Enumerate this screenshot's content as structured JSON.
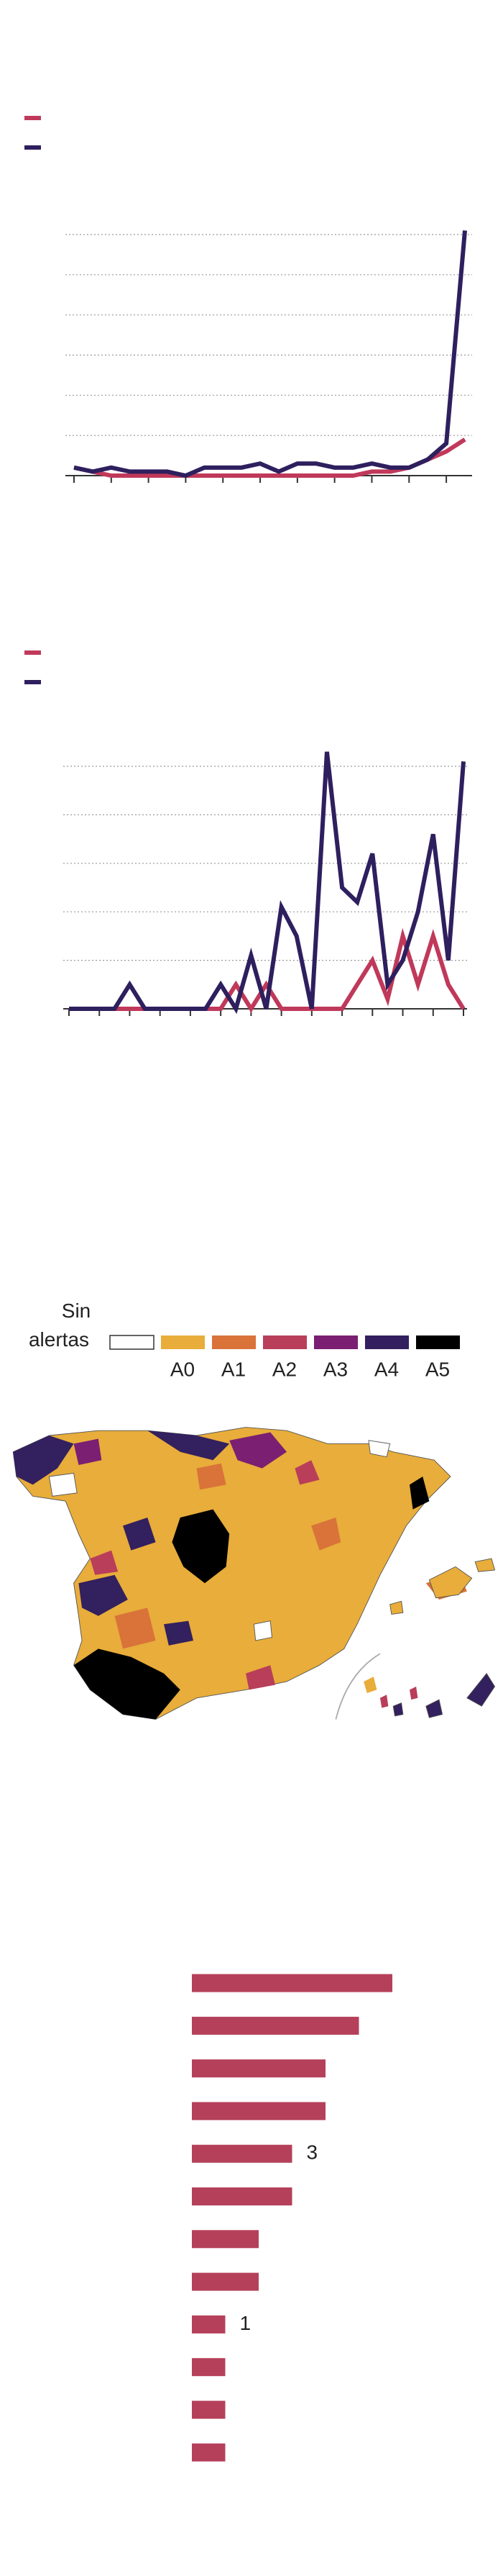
{
  "chart_data": [
    {
      "type": "line",
      "categories": [
        null,
        null,
        null,
        null,
        null,
        null,
        null,
        null,
        null,
        null,
        null,
        null,
        null,
        null,
        null,
        null,
        null,
        null,
        null,
        null,
        null,
        null
      ],
      "series": [
        {
          "color": "#c0395a",
          "values": [
            0.2,
            0.1,
            0,
            0,
            0,
            0,
            0,
            0,
            0,
            0,
            0,
            0,
            0,
            0,
            0,
            0,
            0.1,
            0.1,
            0.2,
            0.4,
            0.6,
            0.9
          ]
        },
        {
          "color": "#2e1f5e",
          "values": [
            0.2,
            0.1,
            0.2,
            0.1,
            0.1,
            0.1,
            0,
            0.2,
            0.2,
            0.2,
            0.3,
            0.1,
            0.3,
            0.3,
            0.2,
            0.2,
            0.3,
            0.2,
            0.2,
            0.4,
            0.8,
            6.1
          ]
        }
      ],
      "ylim": [
        0,
        6
      ],
      "yticks": [
        0,
        1,
        2,
        3,
        4,
        5,
        6
      ],
      "grid": true,
      "tick_labels": false
    },
    {
      "type": "line",
      "categories": [
        null,
        null,
        null,
        null,
        null,
        null,
        null,
        null,
        null,
        null,
        null,
        null,
        null,
        null,
        null,
        null,
        null,
        null,
        null,
        null,
        null,
        null,
        null,
        null,
        null,
        null,
        null
      ],
      "series": [
        {
          "color": "#c0395a",
          "values": [
            0,
            0,
            0,
            0,
            0,
            0,
            0,
            0,
            0,
            0,
            0,
            0.5,
            0,
            0.5,
            0,
            0,
            0,
            0,
            0,
            0.5,
            1.0,
            0.2,
            1.5,
            0.5,
            1.5,
            0.5,
            0
          ]
        },
        {
          "color": "#2e1f5e",
          "values": [
            0,
            0,
            0,
            0,
            0.5,
            0,
            0,
            0,
            0,
            0,
            0.5,
            0,
            1.1,
            0,
            2.1,
            1.5,
            0,
            5.3,
            2.5,
            2.2,
            3.2,
            0.5,
            1.0,
            2.0,
            3.6,
            1.0,
            5.1
          ]
        }
      ],
      "ylim": [
        0,
        5
      ],
      "yticks": [
        0,
        1,
        2,
        3,
        4,
        5
      ],
      "grid": true,
      "tick_labels": false
    },
    {
      "type": "choropleth",
      "legend": [
        {
          "label": "Sin alertas",
          "color": "#ffffff"
        },
        {
          "label": "A0",
          "color": "#e8ad3a"
        },
        {
          "label": "A1",
          "color": "#d9733a"
        },
        {
          "label": "A2",
          "color": "#b93e5a"
        },
        {
          "label": "A3",
          "color": "#7b1f72"
        },
        {
          "label": "A4",
          "color": "#33205e"
        },
        {
          "label": "A5",
          "color": "#000000"
        }
      ]
    },
    {
      "type": "hbar",
      "color": "#b5405a",
      "categories": [
        null,
        null,
        null,
        null,
        null,
        null,
        null,
        null,
        null,
        null,
        null,
        null
      ],
      "values": [
        6,
        5,
        4,
        4,
        3,
        3,
        2,
        2,
        1,
        1,
        1,
        1
      ],
      "value_labels": [
        null,
        null,
        null,
        null,
        "3",
        null,
        null,
        null,
        "1",
        null,
        null,
        null
      ]
    }
  ]
}
